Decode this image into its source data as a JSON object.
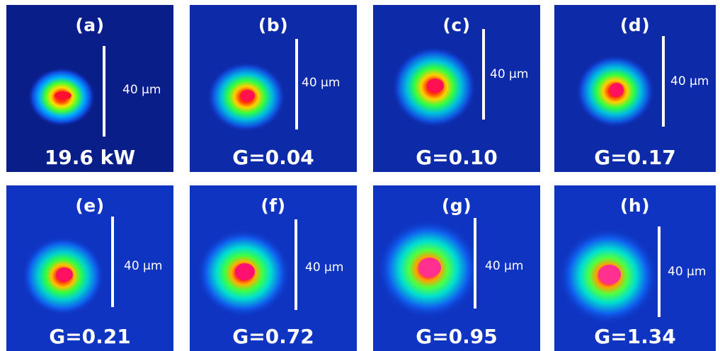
{
  "panels": [
    {
      "label": "(a)",
      "caption": "19.6 kW",
      "scale": "40 µm",
      "bg": "#0a1e8a"
    },
    {
      "label": "(b)",
      "caption": "G=0.04",
      "scale": "40 µm",
      "bg": "#0d2aa8"
    },
    {
      "label": "(c)",
      "caption": "G=0.10",
      "scale": "40 µm",
      "bg": "#0d2aa8"
    },
    {
      "label": "(d)",
      "caption": "G=0.17",
      "scale": "40 µm",
      "bg": "#0d2aa8"
    },
    {
      "label": "(e)",
      "caption": "G=0.21",
      "scale": "40 µm",
      "bg": "#0f34c2"
    },
    {
      "label": "(f)",
      "caption": "G=0.72",
      "scale": "40 µm",
      "bg": "#0f34c2"
    },
    {
      "label": "(g)",
      "caption": "G=0.95",
      "scale": "40 µm",
      "bg": "#0f34c2"
    },
    {
      "label": "(h)",
      "caption": "G=1.34",
      "scale": "40 µm",
      "bg": "#0f34c2"
    }
  ]
}
